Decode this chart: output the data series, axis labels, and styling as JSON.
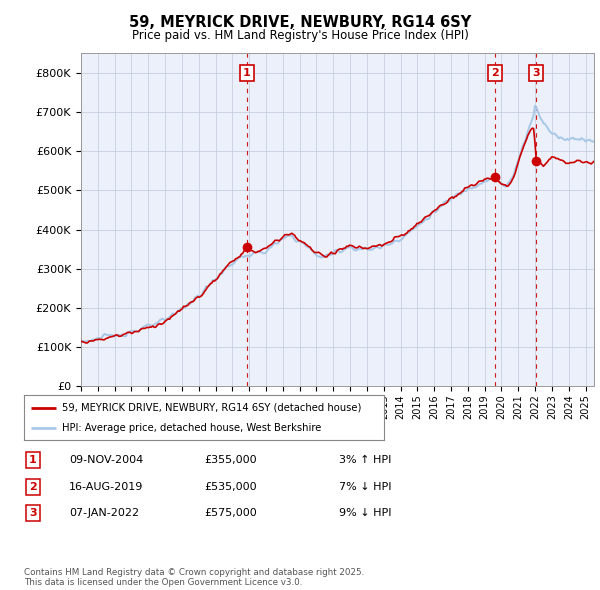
{
  "title": "59, MEYRICK DRIVE, NEWBURY, RG14 6SY",
  "subtitle": "Price paid vs. HM Land Registry's House Price Index (HPI)",
  "ylabel_ticks": [
    "£0",
    "£100K",
    "£200K",
    "£300K",
    "£400K",
    "£500K",
    "£600K",
    "£700K",
    "£800K"
  ],
  "ytick_values": [
    0,
    100000,
    200000,
    300000,
    400000,
    500000,
    600000,
    700000,
    800000
  ],
  "ylim": [
    0,
    850000
  ],
  "xlim_start": 1995.0,
  "xlim_end": 2025.5,
  "sale_dates_num": [
    2004.86,
    2019.62,
    2022.03
  ],
  "sale_prices": [
    355000,
    535000,
    575000
  ],
  "sale_labels": [
    "1",
    "2",
    "3"
  ],
  "hpi_color": "#A8C8E8",
  "price_color": "#CC0000",
  "background_color": "#EBF0FA",
  "legend_entries": [
    "59, MEYRICK DRIVE, NEWBURY, RG14 6SY (detached house)",
    "HPI: Average price, detached house, West Berkshire"
  ],
  "table_rows": [
    [
      "1",
      "09-NOV-2004",
      "£355,000",
      "3% ↑ HPI"
    ],
    [
      "2",
      "16-AUG-2019",
      "£535,000",
      "7% ↓ HPI"
    ],
    [
      "3",
      "07-JAN-2022",
      "£575,000",
      "9% ↓ HPI"
    ]
  ],
  "footer": "Contains HM Land Registry data © Crown copyright and database right 2025.\nThis data is licensed under the Open Government Licence v3.0.",
  "dashed_vline_color": "#CC0000",
  "grid_color": "#C8D0E0"
}
